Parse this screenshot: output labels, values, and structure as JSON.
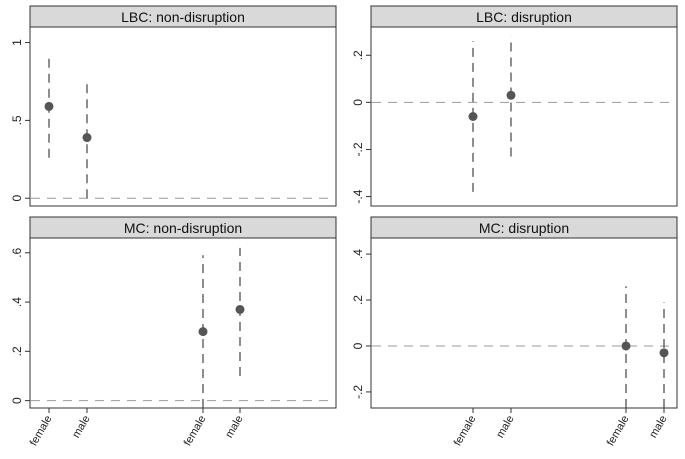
{
  "chart_data": [
    {
      "type": "scatter",
      "title": "LBC: non-disruption",
      "reference_line": 0,
      "yticks": [
        {
          "value": 0,
          "label": "0"
        },
        {
          "value": 0.5,
          "label": ".5"
        },
        {
          "value": 1,
          "label": "1"
        }
      ],
      "ylim": [
        -0.05,
        1.1
      ],
      "points": [
        {
          "x": "female",
          "y": 0.59,
          "ci": [
            0.26,
            0.91
          ]
        },
        {
          "x": "male",
          "y": 0.39,
          "ci": [
            0.0,
            0.77
          ]
        }
      ]
    },
    {
      "type": "scatter",
      "title": "LBC: disruption",
      "reference_line": 0,
      "yticks": [
        {
          "value": -0.4,
          "label": "-.4"
        },
        {
          "value": -0.2,
          "label": "-.2"
        },
        {
          "value": 0,
          "label": "0"
        },
        {
          "value": 0.2,
          "label": ".2"
        }
      ],
      "ylim": [
        -0.44,
        0.32
      ],
      "points": [
        {
          "x": "female",
          "y": -0.06,
          "ci": [
            -0.38,
            0.26
          ]
        },
        {
          "x": "male",
          "y": 0.03,
          "ci": [
            -0.23,
            0.28
          ]
        }
      ]
    },
    {
      "type": "scatter",
      "title": "MC: non-disruption",
      "reference_line": 0,
      "yticks": [
        {
          "value": 0,
          "label": "0"
        },
        {
          "value": 0.2,
          "label": ".2"
        },
        {
          "value": 0.4,
          "label": ".4"
        },
        {
          "value": 0.6,
          "label": ".6"
        }
      ],
      "ylim": [
        -0.03,
        0.66
      ],
      "points": [
        {
          "x": "female",
          "y": 0.28,
          "ci": [
            -0.03,
            0.59
          ]
        },
        {
          "x": "male",
          "y": 0.37,
          "ci": [
            0.1,
            0.62
          ]
        }
      ]
    },
    {
      "type": "scatter",
      "title": "MC: disruption",
      "reference_line": 0,
      "yticks": [
        {
          "value": -0.2,
          "label": "-.2"
        },
        {
          "value": 0,
          "label": "0"
        },
        {
          "value": 0.2,
          "label": ".2"
        },
        {
          "value": 0.4,
          "label": ".4"
        }
      ],
      "ylim": [
        -0.27,
        0.47
      ],
      "points": [
        {
          "x": "female",
          "y": 0.0,
          "ci": [
            -0.27,
            0.26
          ]
        },
        {
          "x": "male",
          "y": -0.03,
          "ci": [
            -0.27,
            0.19
          ]
        }
      ]
    }
  ],
  "x_axis": {
    "left_column_labels": [
      "female",
      "male",
      "female",
      "male"
    ],
    "right_column_labels": [
      "female",
      "male",
      "female",
      "male"
    ]
  },
  "colors": {
    "panel_header_bg": "#d9d9d9",
    "border": "#333333",
    "marker": "#555555",
    "ci_line": "#444444",
    "reference_line": "#999999"
  }
}
